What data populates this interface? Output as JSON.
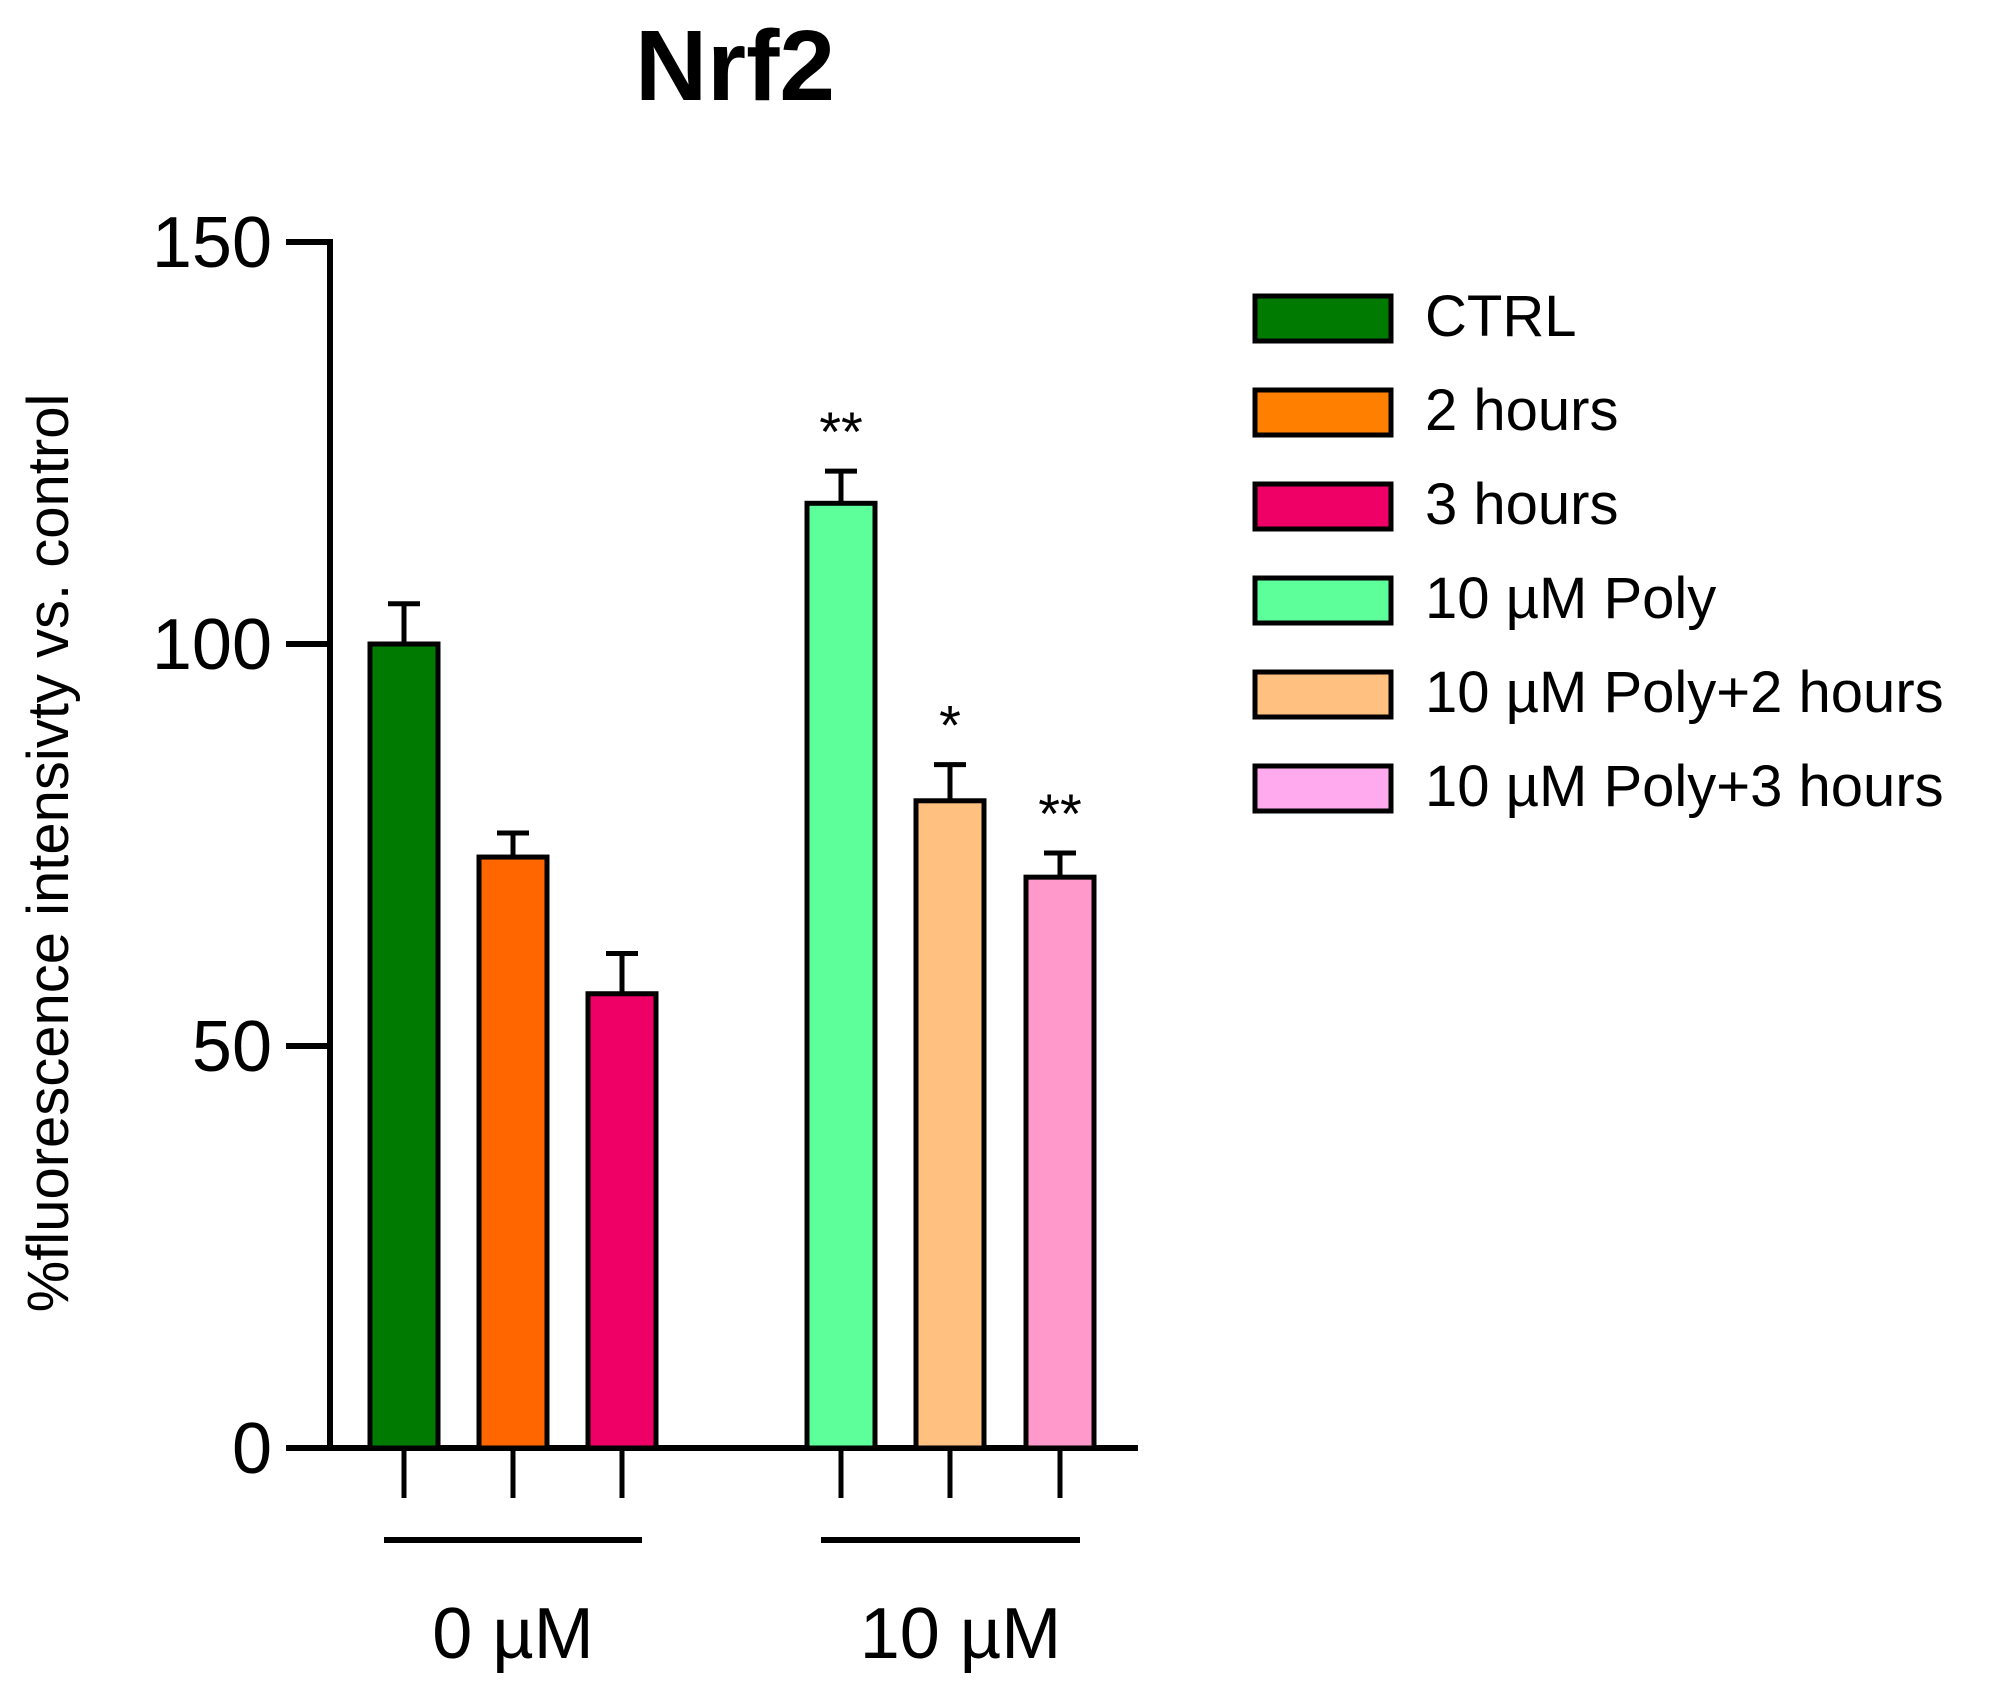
{
  "chart_data": {
    "type": "bar",
    "title": "Nrf2",
    "ylabel": "%fluorescence intensivty vs. control",
    "xlabel": "",
    "ylim": [
      0,
      150
    ],
    "yticks": [
      0,
      50,
      100,
      150
    ],
    "ytick_labels": [
      "0",
      "50",
      "100",
      "150"
    ],
    "groups": [
      {
        "label": "0 µM",
        "series_indices": [
          0,
          1,
          2
        ]
      },
      {
        "label": "10 µM",
        "series_indices": [
          3,
          4,
          5
        ]
      }
    ],
    "series": [
      {
        "name": "CTRL",
        "value": 100,
        "error": 5,
        "color": "#007a00",
        "annotation": ""
      },
      {
        "name": "2 hours",
        "value": 73.5,
        "error": 3,
        "color": "#ff6600",
        "annotation": ""
      },
      {
        "name": "3 hours",
        "value": 56.5,
        "error": 5,
        "color": "#ee0066",
        "annotation": ""
      },
      {
        "name": "10 µM Poly",
        "value": 117.5,
        "error": 4,
        "color": "#5cff99",
        "annotation": "**"
      },
      {
        "name": "10 µM Poly+2 hours",
        "value": 80.5,
        "error": 4.5,
        "color": "#ffc080",
        "annotation": "*"
      },
      {
        "name": "10 µM Poly+3 hours",
        "value": 71,
        "error": 3,
        "color": "#ff99cc",
        "annotation": "**"
      }
    ],
    "legend_colors": [
      "#007a00",
      "#ff8000",
      "#ee0066",
      "#5cff99",
      "#ffc080",
      "#ffaaee"
    ],
    "legend_position": "right",
    "grid": false
  }
}
